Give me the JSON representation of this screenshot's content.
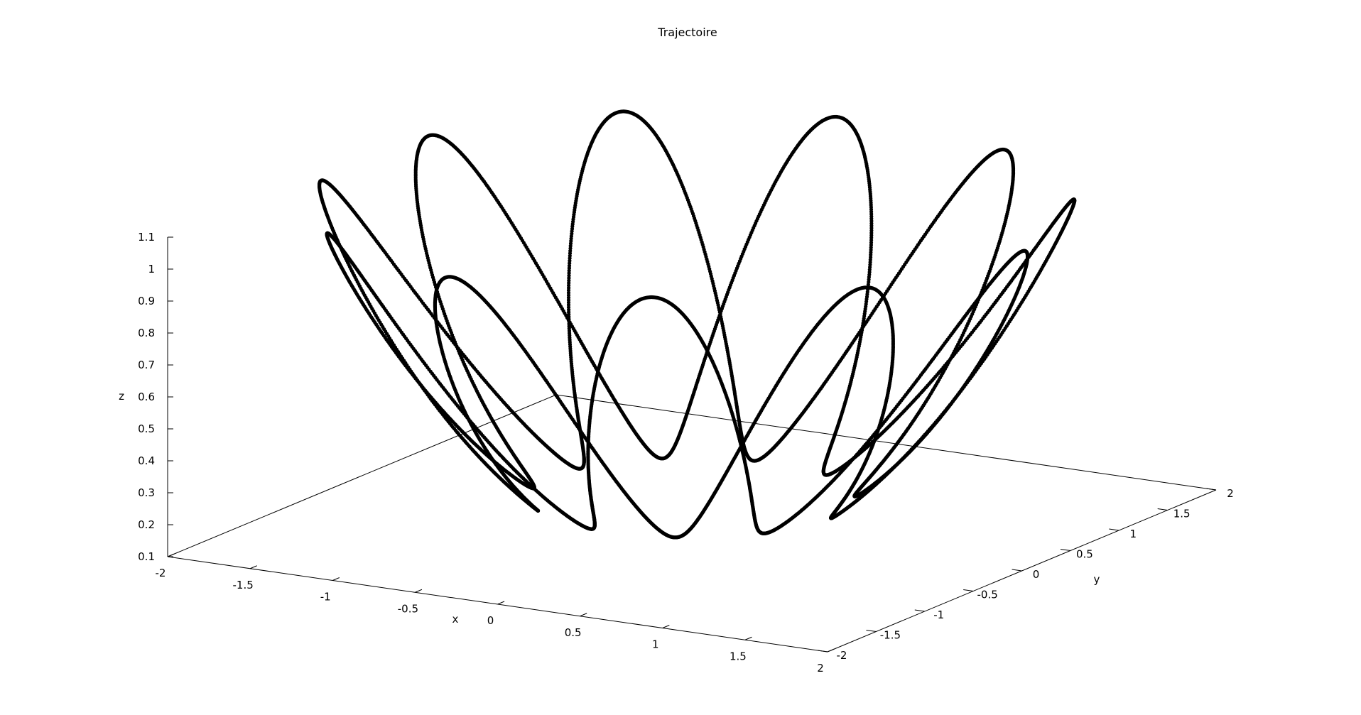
{
  "chart_data": {
    "type": "scatter",
    "title": "Trajectoire",
    "xlabel": "x",
    "ylabel": "y",
    "zlabel": "z",
    "xlim": [
      -2,
      2
    ],
    "ylim": [
      -2,
      2
    ],
    "zlim": [
      0.1,
      1.1
    ],
    "x_ticks": [
      -2,
      -1.5,
      -1,
      -0.5,
      0,
      0.5,
      1,
      1.5,
      2
    ],
    "y_ticks": [
      -2,
      -1.5,
      -1,
      -0.5,
      0,
      0.5,
      1,
      1.5,
      2
    ],
    "z_ticks": [
      0.1,
      0.2,
      0.3,
      0.4,
      0.5,
      0.6,
      0.7,
      0.8,
      0.9,
      1,
      1.1
    ],
    "x_tick_labels": [
      "-2",
      "-1.5",
      "-1",
      "-0.5",
      "0",
      "0.5",
      "1",
      "1.5",
      "2"
    ],
    "y_tick_labels": [
      "-2",
      "-1.5",
      "-1",
      "-0.5",
      "0",
      "0.5",
      "1",
      "1.5",
      "2"
    ],
    "z_tick_labels": [
      "0.1",
      "0.2",
      "0.3",
      "0.4",
      "0.5",
      "0.6",
      "0.7",
      "0.8",
      "0.9",
      "1",
      "1.1"
    ],
    "grid": false,
    "marker_color": "#000000",
    "trajectory": {
      "surface": "paraboloid",
      "radius_min": 0.85,
      "radius_max": 2.0,
      "lobes": 11,
      "revolutions": 2,
      "z_min": 0.18,
      "z_max": 1.1
    }
  }
}
